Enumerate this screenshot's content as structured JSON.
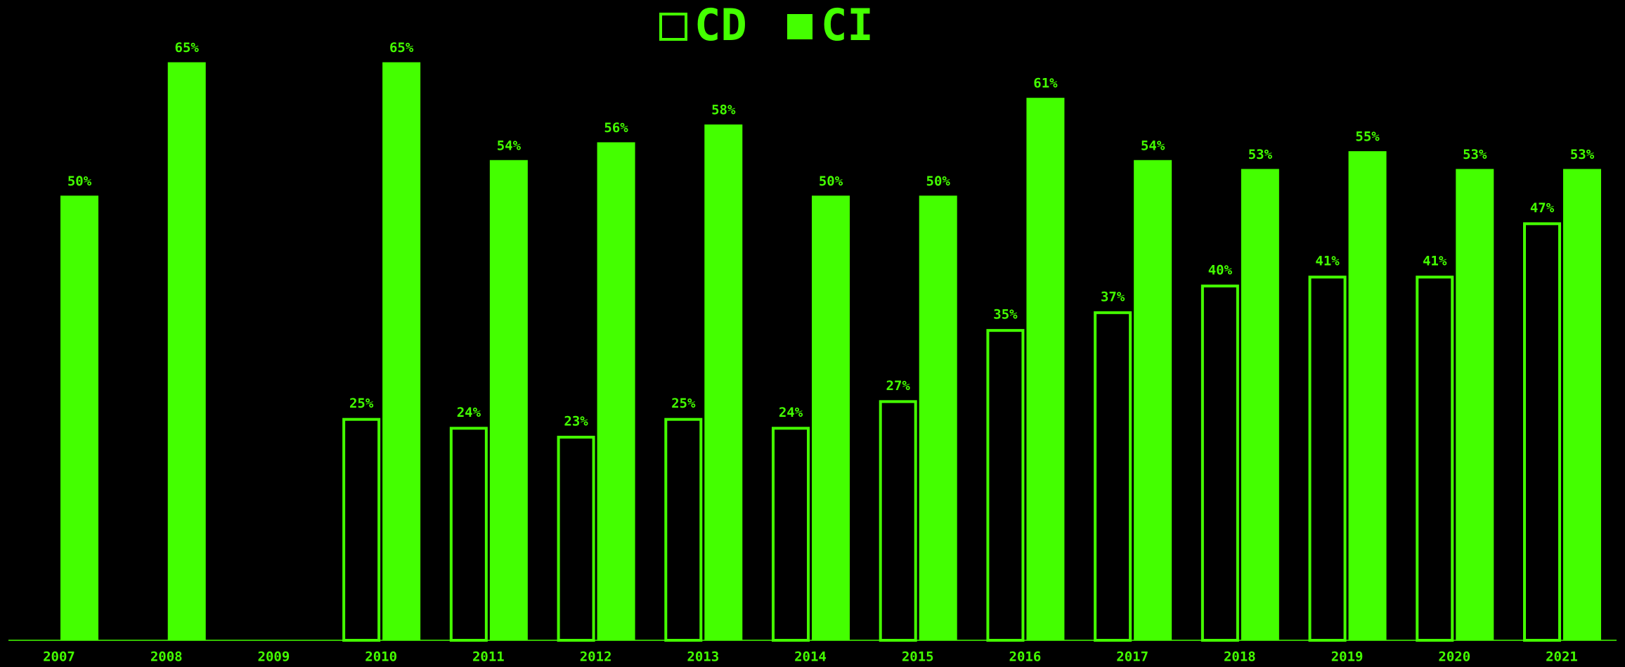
{
  "chart_data": {
    "type": "bar",
    "categories": [
      "2007",
      "2008",
      "2009",
      "2010",
      "2011",
      "2012",
      "2013",
      "2014",
      "2015",
      "2016",
      "2017",
      "2018",
      "2019",
      "2020",
      "2021"
    ],
    "series": [
      {
        "name": "CD",
        "color": "#44ff00",
        "style": "outline",
        "values": [
          null,
          null,
          null,
          25,
          24,
          23,
          25,
          24,
          27,
          35,
          37,
          40,
          41,
          41,
          47
        ],
        "value_labels": [
          null,
          null,
          null,
          "25%",
          "24%",
          "23%",
          "25%",
          "24%",
          "27%",
          "35%",
          "37%",
          "40%",
          "41%",
          "41%",
          "47%"
        ]
      },
      {
        "name": "CI",
        "color": "#44ff00",
        "style": "filled",
        "values": [
          50,
          65,
          null,
          65,
          54,
          56,
          58,
          50,
          50,
          61,
          54,
          53,
          55,
          53,
          53
        ],
        "value_labels": [
          "50%",
          "65%",
          null,
          "65%",
          "54%",
          "56%",
          "58%",
          "50%",
          "50%",
          "61%",
          "54%",
          "53%",
          "55%",
          "53%",
          "53%"
        ]
      }
    ],
    "ylim": [
      0,
      72
    ],
    "legend": "top"
  }
}
